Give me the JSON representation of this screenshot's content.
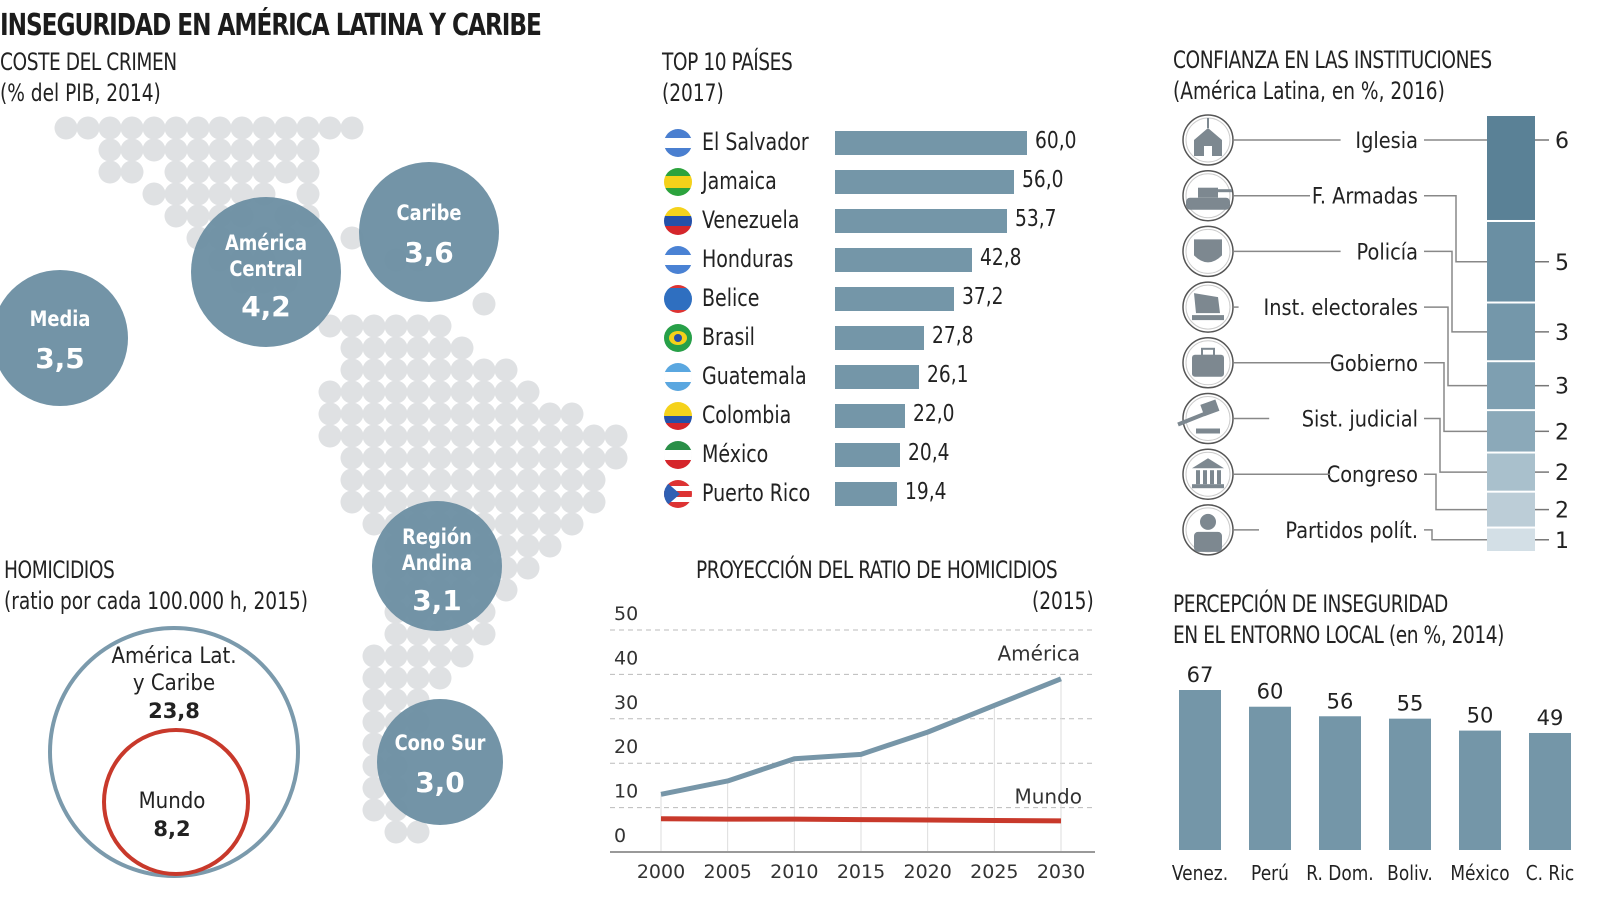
{
  "main_title": "INSEGURIDAD EN AMÉRICA LATINA Y CARIBE",
  "colors": {
    "bar": "#7496a8",
    "bubble": "#6b8ea2",
    "dots": "#dfe1e3",
    "america_line": "#7796a8",
    "mundo_line": "#c8392b",
    "text": "#222222"
  },
  "coste_crimen": {
    "title": "COSTE DEL CRIMEN",
    "subtitle": "(% del PIB, 2014)",
    "regions": [
      {
        "name": "Media",
        "value": "3,5"
      },
      {
        "name": "América Central",
        "line1": "América",
        "line2": "Central",
        "value": "4,2"
      },
      {
        "name": "Caribe",
        "value": "3,6"
      },
      {
        "name": "Región Andina",
        "line1": "Región",
        "line2": "Andina",
        "value": "3,1"
      },
      {
        "name": "Cono Sur",
        "value": "3,0"
      }
    ]
  },
  "homicidios": {
    "title": "HOMICIDIOS",
    "subtitle": "(ratio por cada 100.000 h, 2015)",
    "america": {
      "line1": "América Lat.",
      "line2": "y Caribe",
      "value": "23,8"
    },
    "mundo": {
      "label": "Mundo",
      "value": "8,2"
    }
  },
  "top10": {
    "title": "TOP 10 PAÍSES",
    "subtitle": "(2017)"
  },
  "proyeccion": {
    "title": "PROYECCIÓN DEL RATIO DE HOMICIDIOS",
    "subtitle": "(2015)",
    "america_label": "América",
    "mundo_label": "Mundo"
  },
  "confianza": {
    "title": "CONFIANZA EN LAS INSTITUCIONES",
    "subtitle": "(América Latina, en %, 2016)",
    "items": [
      {
        "label": "Iglesia",
        "icon": "church-icon",
        "value_visible": "6"
      },
      {
        "label": "F. Armadas",
        "icon": "tank-icon",
        "value_visible": "5"
      },
      {
        "label": "Policía",
        "icon": "police-badge-icon",
        "value_visible": "3"
      },
      {
        "label": "Inst. electorales",
        "icon": "ballot-icon",
        "value_visible": "3"
      },
      {
        "label": "Gobierno",
        "icon": "briefcase-icon",
        "value_visible": "2"
      },
      {
        "label": "Sist. judicial",
        "icon": "gavel-icon",
        "value_visible": "2"
      },
      {
        "label": "Congreso",
        "icon": "congress-building-icon",
        "value_visible": "2"
      },
      {
        "label": "Partidos polít.",
        "icon": "person-icon",
        "value_visible": "1"
      }
    ]
  },
  "percepcion": {
    "title_bold": "PERCEPCIÓN DE INSEGURIDAD",
    "title_bold2": "EN EL ENTORNO LOCAL",
    "title_normal": "(en %, 2014)"
  },
  "chart_data": [
    {
      "type": "bubble",
      "title": "COSTE DEL CRIMEN",
      "subtitle": "(% del PIB, 2014)",
      "categories": [
        "Media",
        "América Central",
        "Caribe",
        "Región Andina",
        "Cono Sur"
      ],
      "values": [
        3.5,
        4.2,
        3.6,
        3.1,
        3.0
      ]
    },
    {
      "type": "bar",
      "orientation": "horizontal",
      "title": "TOP 10 PAÍSES",
      "subtitle": "(2017)",
      "categories": [
        "El Salvador",
        "Jamaica",
        "Venezuela",
        "Honduras",
        "Belice",
        "Brasil",
        "Guatemala",
        "Colombia",
        "México",
        "Puerto Rico"
      ],
      "values": [
        60.0,
        56.0,
        53.7,
        42.8,
        37.2,
        27.8,
        26.1,
        22.0,
        20.4,
        19.4
      ],
      "labels": [
        "60,0",
        "56,0",
        "53,7",
        "42,8",
        "37,2",
        "27,8",
        "26,1",
        "22,0",
        "20,4",
        "19,4"
      ],
      "flags": [
        "el-salvador-flag-icon",
        "jamaica-flag-icon",
        "venezuela-flag-icon",
        "honduras-flag-icon",
        "belize-flag-icon",
        "brazil-flag-icon",
        "guatemala-flag-icon",
        "colombia-flag-icon",
        "mexico-flag-icon",
        "puerto-rico-flag-icon"
      ],
      "xlim": [
        0,
        60
      ]
    },
    {
      "type": "bubble-nested",
      "title": "HOMICIDIOS",
      "subtitle": "(ratio por cada 100.000 h, 2015)",
      "categories": [
        "América Lat. y Caribe",
        "Mundo"
      ],
      "values": [
        23.8,
        8.2
      ]
    },
    {
      "type": "line",
      "title": "PROYECCIÓN DEL RATIO DE HOMICIDIOS",
      "subtitle": "(2015)",
      "x": [
        2000,
        2005,
        2010,
        2015,
        2020,
        2025,
        2030
      ],
      "series": [
        {
          "name": "América",
          "values": [
            13,
            16,
            21,
            22,
            27,
            33,
            39
          ]
        },
        {
          "name": "Mundo",
          "values": [
            7.5,
            7.4,
            7.4,
            7.3,
            7.2,
            7.1,
            7.0
          ]
        }
      ],
      "yticks": [
        0,
        10,
        20,
        30,
        40,
        50
      ],
      "xticks": [
        "2000",
        "2005",
        "2010",
        "2015",
        "2020",
        "2025",
        "2030"
      ],
      "ylim": [
        0,
        50
      ],
      "grid": true
    },
    {
      "type": "bar",
      "orientation": "stacked-vertical",
      "title": "CONFIANZA EN LAS INSTITUCIONES",
      "subtitle": "(América Latina, en %, 2016)",
      "categories": [
        "Iglesia",
        "F. Armadas",
        "Policía",
        "Inst. electorales",
        "Gobierno",
        "Sist. judicial",
        "Congreso",
        "Partidos polít."
      ],
      "values_visible_first_digit": [
        "6",
        "5",
        "3",
        "3",
        "2",
        "2",
        "2",
        "1"
      ],
      "values_estimated": [
        65,
        50,
        36,
        30,
        26,
        24,
        22,
        15
      ],
      "segment_colors": [
        "#5a8196",
        "#6a8fa3",
        "#7497aa",
        "#7e9fb1",
        "#8ba9b9",
        "#a9c0cc",
        "#bccdd7",
        "#d3dfe6"
      ]
    },
    {
      "type": "bar",
      "orientation": "vertical",
      "title": "PERCEPCIÓN DE INSEGURIDAD EN EL ENTORNO LOCAL (en %, 2014)",
      "categories": [
        "Venez.",
        "Perú",
        "R. Dom.",
        "Boliv.",
        "México",
        "C. Ric"
      ],
      "values": [
        67,
        60,
        56,
        55,
        50,
        49
      ],
      "ylim": [
        0,
        67
      ]
    }
  ]
}
